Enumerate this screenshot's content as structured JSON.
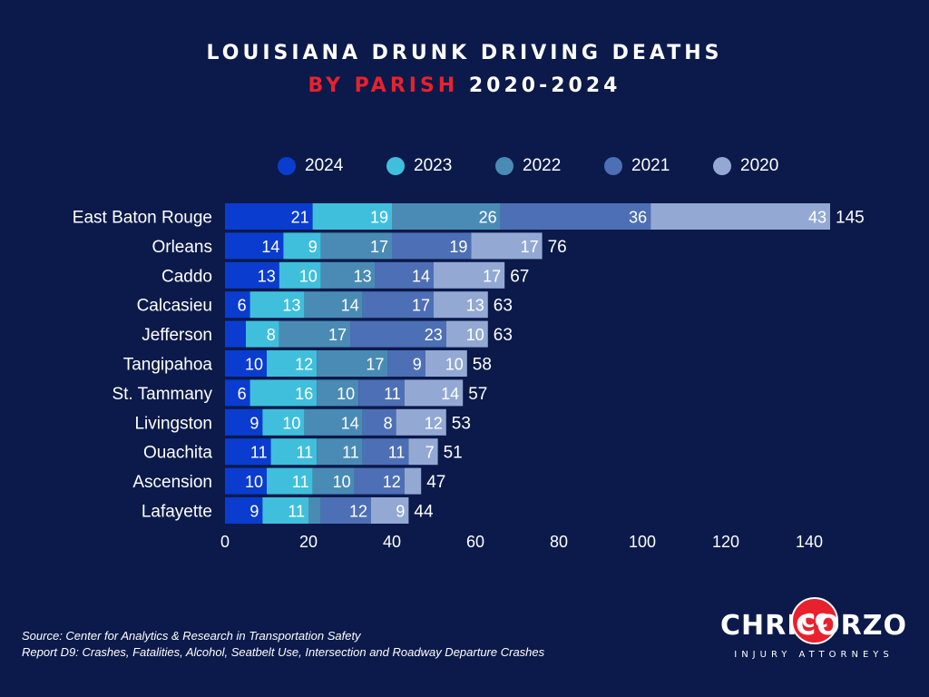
{
  "title": {
    "line1": "LOUISIANA DRUNK DRIVING DEATHS",
    "line2_red": "BY PARISH",
    "line2_white": "2020-2024"
  },
  "legend": [
    {
      "label": "2024",
      "color": "#0a3ccf"
    },
    {
      "label": "2023",
      "color": "#40bfdc"
    },
    {
      "label": "2022",
      "color": "#4a8bb6"
    },
    {
      "label": "2021",
      "color": "#4d6fb5"
    },
    {
      "label": "2020",
      "color": "#93a9d4"
    }
  ],
  "chart_data": {
    "type": "bar",
    "orientation": "horizontal",
    "stacked": true,
    "title": "LOUISIANA DRUNK DRIVING DEATHS BY PARISH 2020-2024",
    "categories": [
      "East Baton Rouge",
      "Orleans",
      "Caddo",
      "Calcasieu",
      "Jefferson",
      "Tangipahoa",
      "St. Tammany",
      "Livingston",
      "Ouachita",
      "Ascension",
      "Lafayette"
    ],
    "series": [
      {
        "name": "2024",
        "color": "#0a3ccf",
        "values": [
          21,
          14,
          13,
          6,
          5,
          10,
          6,
          9,
          11,
          10,
          9
        ],
        "labels": [
          "21",
          "14",
          "13",
          "6",
          "",
          "10",
          "6",
          "9",
          "11",
          "10",
          "9"
        ]
      },
      {
        "name": "2023",
        "color": "#40bfdc",
        "values": [
          19,
          9,
          10,
          13,
          8,
          12,
          16,
          10,
          11,
          11,
          11
        ],
        "labels": [
          "19",
          "9",
          "10",
          "13",
          "8",
          "12",
          "16",
          "10",
          "11",
          "11",
          "11"
        ]
      },
      {
        "name": "2022",
        "color": "#4a8bb6",
        "values": [
          26,
          17,
          13,
          14,
          17,
          17,
          10,
          14,
          11,
          10,
          3
        ],
        "labels": [
          "26",
          "17",
          "13",
          "14",
          "17",
          "17",
          "10",
          "14",
          "11",
          "10",
          ""
        ]
      },
      {
        "name": "2021",
        "color": "#4d6fb5",
        "values": [
          36,
          19,
          14,
          17,
          23,
          9,
          11,
          8,
          11,
          12,
          12
        ],
        "labels": [
          "36",
          "19",
          "14",
          "17",
          "23",
          "9",
          "11",
          "8",
          "11",
          "12",
          "12"
        ]
      },
      {
        "name": "2020",
        "color": "#93a9d4",
        "values": [
          43,
          17,
          17,
          13,
          10,
          10,
          14,
          12,
          7,
          4,
          9
        ],
        "labels": [
          "43",
          "17",
          "17",
          "13",
          "10",
          "10",
          "14",
          "12",
          "7",
          "",
          "9"
        ]
      }
    ],
    "totals": [
      "145",
      "76",
      "67",
      "63",
      "63",
      "58",
      "57",
      "53",
      "51",
      "47",
      "44"
    ],
    "xlim": [
      0,
      145
    ],
    "xticks": [
      "0",
      "20",
      "40",
      "60",
      "80",
      "100",
      "120",
      "140"
    ],
    "grid": false,
    "legend_position": "top"
  },
  "footer": {
    "line1": "Source: Center for Analytics & Research in Transportation Safety",
    "line2": "Report D9: Crashes, Fatalities, Alcohol, Seatbelt Use, Intersection and Roadway Departure Crashes"
  },
  "logo": {
    "left": "CHRIS",
    "right": "CORZO",
    "emblem": "CC",
    "sub": "INJURY ATTORNEYS"
  }
}
